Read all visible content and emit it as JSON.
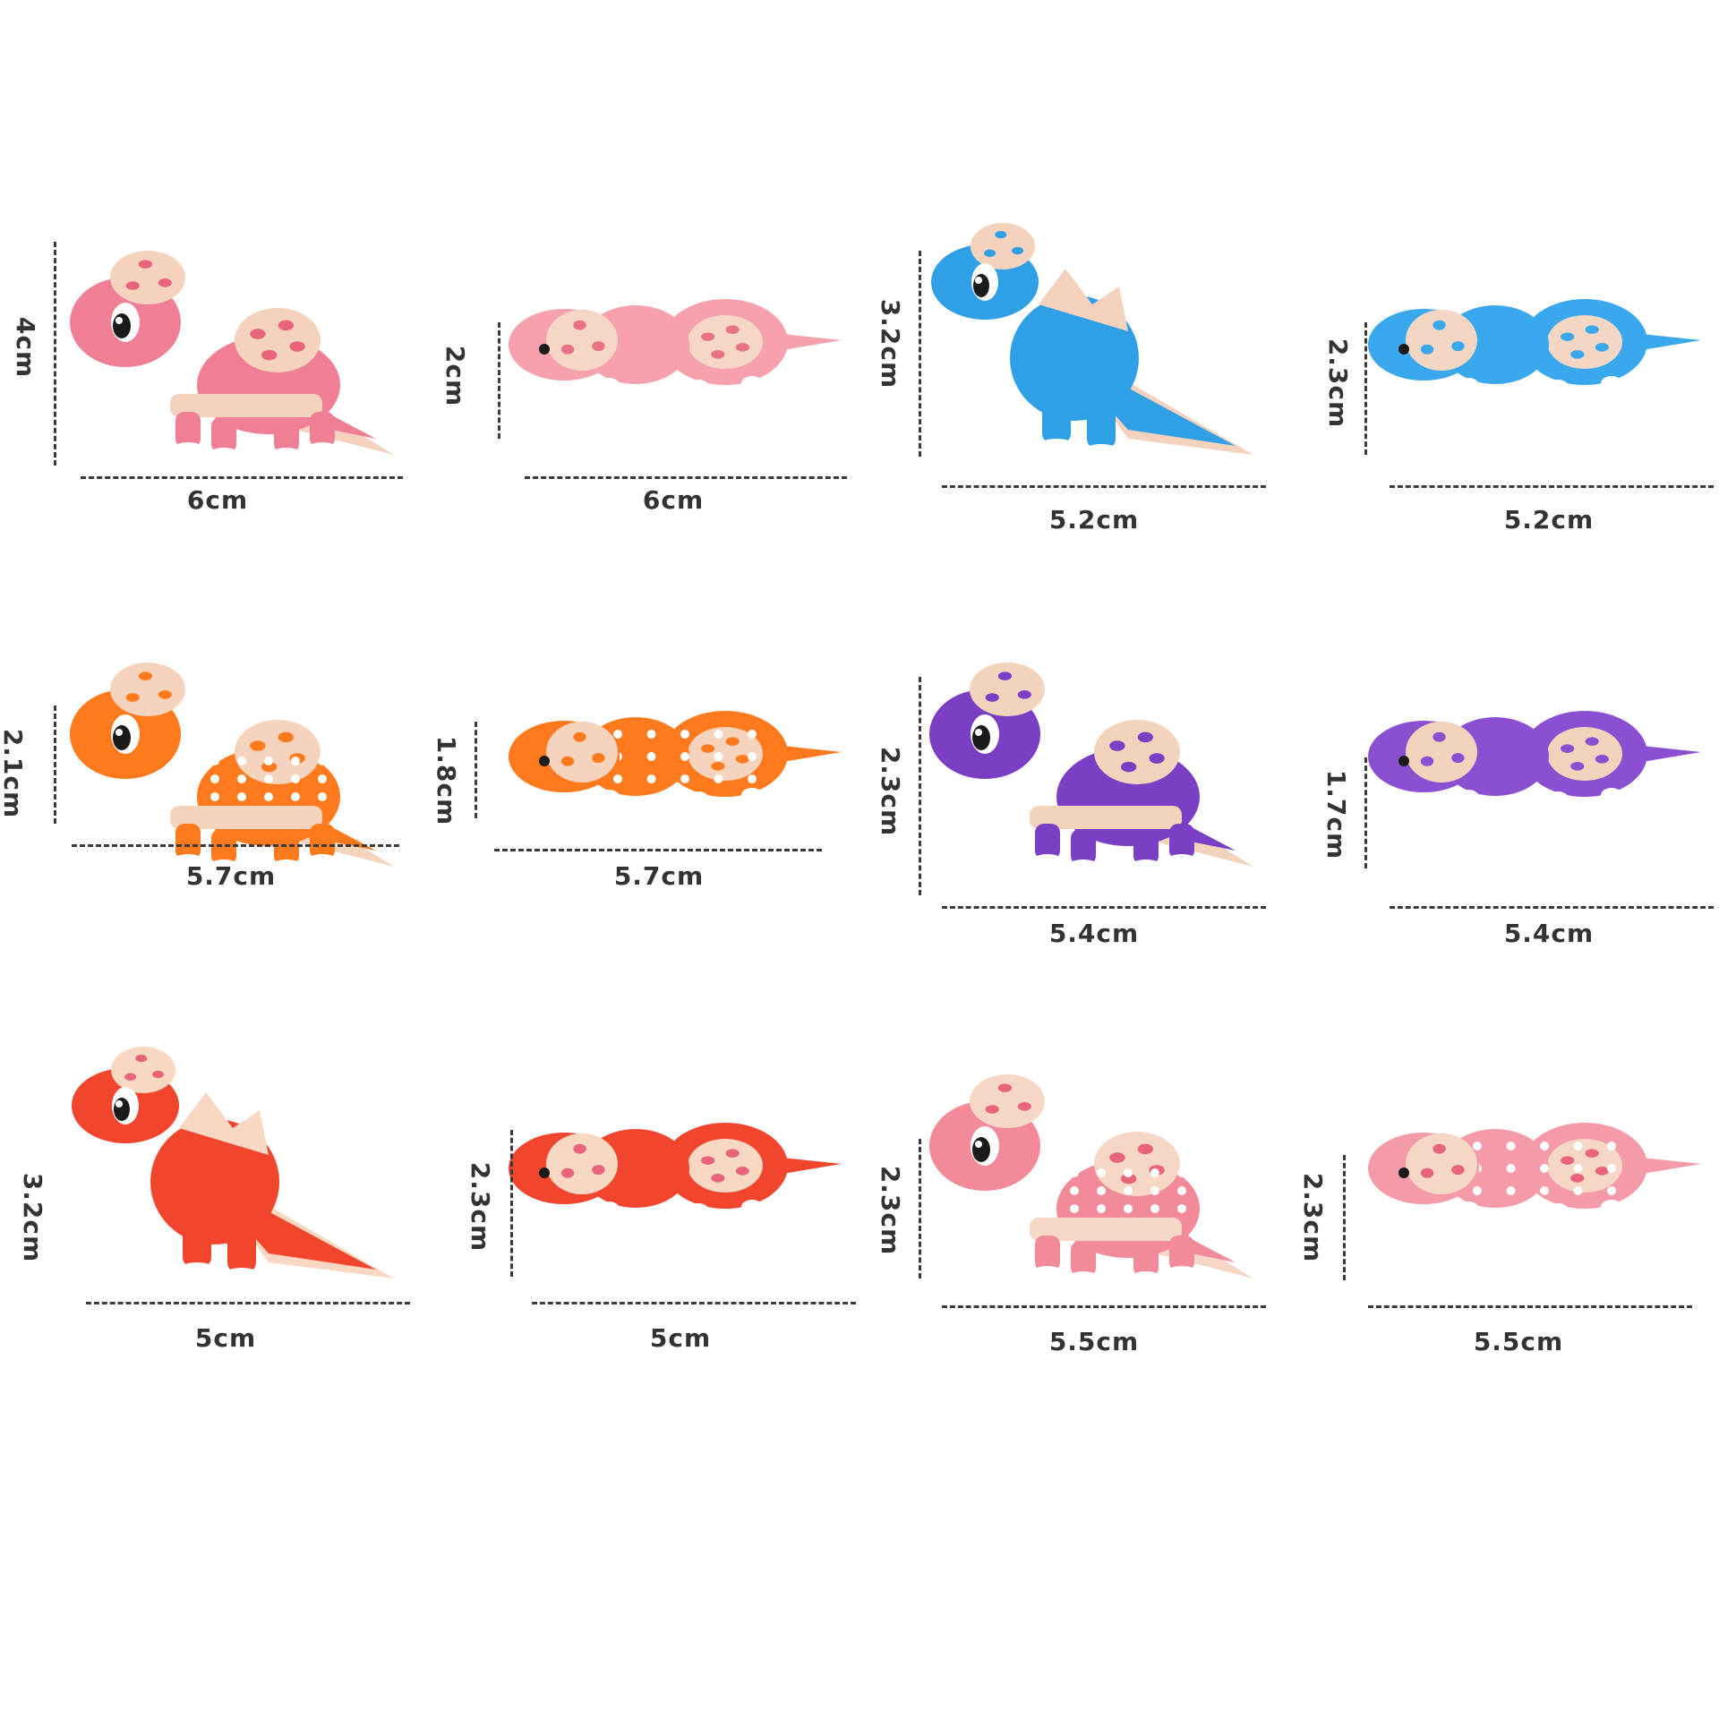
{
  "items": [
    {
      "width": "6cm",
      "height": "4cm",
      "pose": "side",
      "body": "#f07f95",
      "accent": "#f4d2bd",
      "spot": "#e8647d",
      "dots": false
    },
    {
      "width": "6cm",
      "height": "2cm",
      "pose": "top",
      "body": "#f7a0ae",
      "accent": "#f6d6c4",
      "spot": "#ea7286",
      "dots": false
    },
    {
      "width": "5.2cm",
      "height": "3.2cm",
      "pose": "stand",
      "body": "#2f9fe6",
      "accent": "#f4d2bd",
      "spot": "#2f9fe6",
      "dots": false
    },
    {
      "width": "5.2cm",
      "height": "2.3cm",
      "pose": "top",
      "body": "#3aa8ec",
      "accent": "#f4d6c4",
      "spot": "#3aa8ec",
      "dots": false
    },
    {
      "width": "5.7cm",
      "height": "2.1cm",
      "pose": "side",
      "body": "#ff7a1c",
      "accent": "#f6d3bd",
      "spot": "#ff7a1c",
      "dots": true
    },
    {
      "width": "5.7cm",
      "height": "1.8cm",
      "pose": "top",
      "body": "#ff7a1c",
      "accent": "#f6d3bd",
      "spot": "#ff7a1c",
      "dots": true
    },
    {
      "width": "5.4cm",
      "height": "2.3cm",
      "pose": "side",
      "body": "#7a3fc4",
      "accent": "#f2d3bb",
      "spot": "#7a3fc4",
      "dots": false
    },
    {
      "width": "5.4cm",
      "height": "1.7cm",
      "pose": "top",
      "body": "#8b4fd2",
      "accent": "#f2d3bb",
      "spot": "#8b4fd2",
      "dots": false
    },
    {
      "width": "5cm",
      "height": "3.2cm",
      "pose": "stand",
      "body": "#f2452e",
      "accent": "#f8d7c3",
      "spot": "#e8647d",
      "dots": false
    },
    {
      "width": "5cm",
      "height": "2.3cm",
      "pose": "top",
      "body": "#f2452e",
      "accent": "#f8d7c3",
      "spot": "#e8647d",
      "dots": false
    },
    {
      "width": "5.5cm",
      "height": "2.3cm",
      "pose": "side",
      "body": "#f28a9a",
      "accent": "#f6d6c4",
      "spot": "#e8647d",
      "dots": true
    },
    {
      "width": "5.5cm",
      "height": "2.3cm",
      "pose": "top",
      "body": "#f59aa8",
      "accent": "#f6d6c4",
      "spot": "#e8647d",
      "dots": true
    }
  ]
}
